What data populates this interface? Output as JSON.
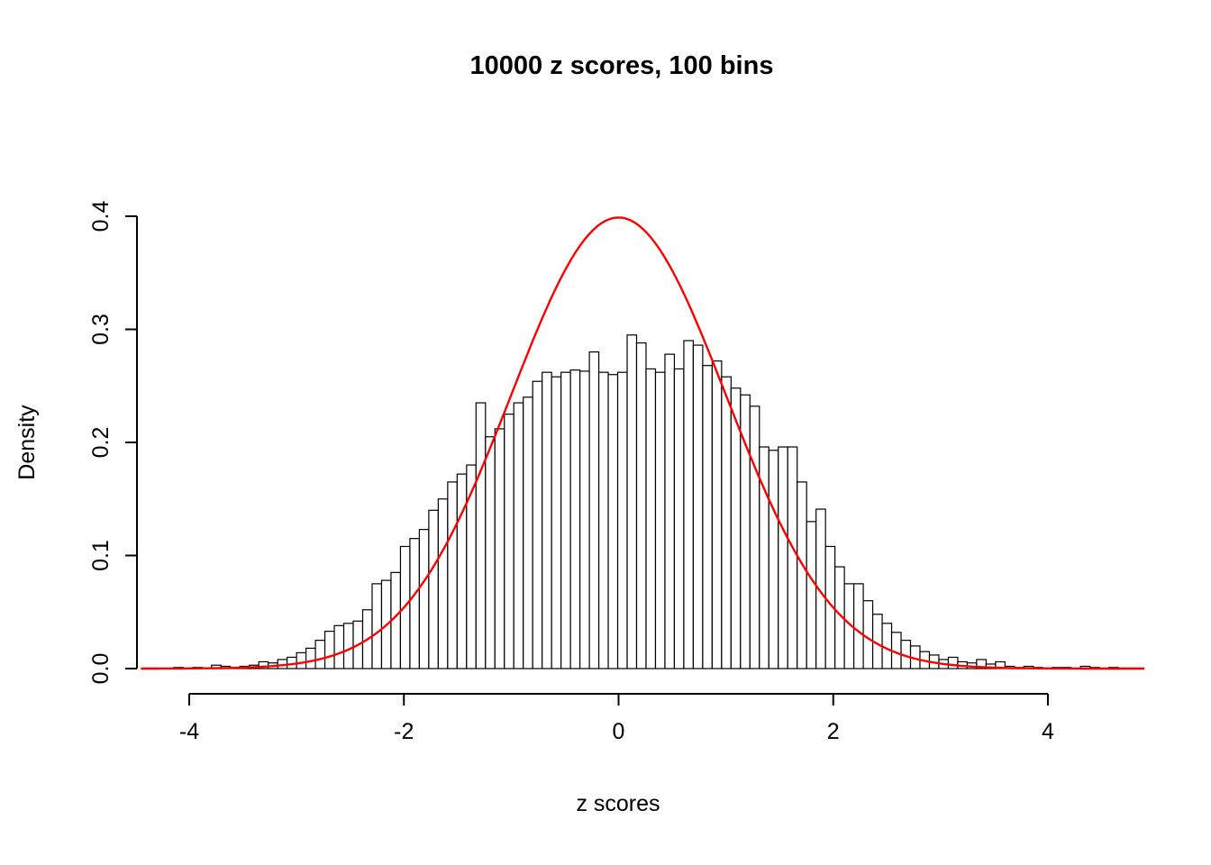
{
  "page": {
    "background": "#ffffff"
  },
  "chart_data": {
    "type": "bar",
    "subtype": "histogram-with-density-curve",
    "title": "10000 z scores, 100 bins",
    "xlabel": "z scores",
    "ylabel": "Density",
    "n_observations": 10000,
    "n_bins": 100,
    "xlim": [
      -4.45,
      4.9
    ],
    "ylim": [
      0,
      0.4
    ],
    "x_ticks": [
      -4,
      -2,
      0,
      2,
      4
    ],
    "y_ticks": [
      0.0,
      0.1,
      0.2,
      0.3,
      0.4
    ],
    "grid": false,
    "legend": "none",
    "bar_fill": "#ffffff",
    "bar_stroke": "#000000",
    "axis_color": "#000000",
    "bin_start": -4.144,
    "bin_width": 0.088,
    "densities": [
      0.001,
      0.0,
      0.001,
      0.0,
      0.003,
      0.002,
      0.001,
      0.002,
      0.003,
      0.006,
      0.005,
      0.008,
      0.01,
      0.014,
      0.018,
      0.025,
      0.033,
      0.038,
      0.04,
      0.042,
      0.052,
      0.075,
      0.078,
      0.085,
      0.108,
      0.115,
      0.123,
      0.14,
      0.15,
      0.165,
      0.172,
      0.18,
      0.235,
      0.205,
      0.212,
      0.225,
      0.235,
      0.24,
      0.254,
      0.262,
      0.258,
      0.262,
      0.264,
      0.263,
      0.28,
      0.262,
      0.26,
      0.262,
      0.295,
      0.288,
      0.265,
      0.262,
      0.278,
      0.265,
      0.29,
      0.286,
      0.268,
      0.272,
      0.258,
      0.248,
      0.242,
      0.232,
      0.196,
      0.193,
      0.196,
      0.196,
      0.165,
      0.13,
      0.141,
      0.108,
      0.09,
      0.075,
      0.075,
      0.06,
      0.048,
      0.04,
      0.032,
      0.025,
      0.02,
      0.015,
      0.012,
      0.008,
      0.01,
      0.006,
      0.005,
      0.008,
      0.004,
      0.006,
      0.002,
      0.001,
      0.002,
      0.001,
      0.0,
      0.001,
      0.001,
      0.0,
      0.002,
      0.001,
      0.0,
      0.001
    ],
    "overlay_curve": {
      "type": "normal_density",
      "mean": 0,
      "sd": 1,
      "peak": 0.3989,
      "color": "#ff0000"
    }
  }
}
